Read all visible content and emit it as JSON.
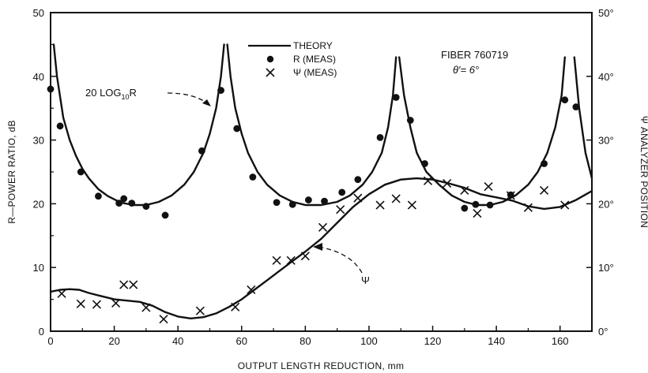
{
  "chart_data": {
    "type": "line",
    "title": "",
    "xlabel": "OUTPUT LENGTH REDUCTION, mm",
    "ylabel": "R—POWER RATIO, dB",
    "y2label": "Ψ ANALYZER POSITION",
    "xlim": [
      0,
      170
    ],
    "ylim": [
      0,
      50
    ],
    "y2lim": [
      0,
      50
    ],
    "xticks": [
      0,
      20,
      40,
      60,
      80,
      100,
      120,
      140,
      160
    ],
    "yticks": [
      0,
      10,
      20,
      30,
      40,
      50
    ],
    "y2ticks": [
      "0°",
      "10°",
      "20°",
      "30°",
      "40°",
      "50°"
    ],
    "grid": false,
    "legend": {
      "position": "top-center",
      "entries": [
        "THEORY",
        "R (MEAS)",
        "Ψ (MEAS)"
      ]
    },
    "annotations": {
      "fiber": "FIBER 760719",
      "angle": "θ′= 6°",
      "r_curve": "20 LOG",
      "r_curve_sub": "10",
      "r_curve_end": "R",
      "psi_curve": "Ψ"
    },
    "series": [
      {
        "name": "THEORY",
        "kind": "theory-R",
        "x": [
          0.5,
          1,
          2,
          4,
          6,
          8,
          10,
          12,
          15,
          18,
          22,
          26,
          30,
          34,
          38,
          42,
          45,
          48,
          50,
          52,
          53.5,
          54.5,
          55.5,
          56.5,
          58,
          60,
          62,
          65,
          68,
          72,
          76,
          80,
          85,
          90,
          94,
          98,
          101,
          104,
          106,
          107.5,
          108.5,
          109.5,
          111,
          113,
          115,
          118,
          122,
          126,
          130,
          134,
          138,
          142,
          146,
          150,
          153,
          156,
          158.5,
          160.5,
          161.5,
          162.5,
          163.5,
          164.5,
          166,
          168,
          170
        ],
        "y": [
          50,
          45,
          40,
          33.5,
          30,
          27.5,
          25.5,
          24,
          22.3,
          21.2,
          20.2,
          19.8,
          19.8,
          20.3,
          21.3,
          23,
          25,
          28,
          31,
          35,
          40,
          45,
          45,
          40,
          35,
          31,
          28,
          25,
          23,
          21.3,
          20.3,
          19.8,
          19.8,
          20.3,
          21.3,
          23,
          25,
          28,
          32,
          37,
          43,
          43,
          37,
          32,
          28,
          25,
          23,
          21.3,
          20.3,
          19.8,
          19.8,
          20.3,
          21.3,
          23,
          25,
          28,
          32,
          37,
          43,
          50,
          50,
          43,
          35,
          28,
          24
        ]
      },
      {
        "name": "THEORY",
        "kind": "theory-psi",
        "x": [
          0,
          3,
          6,
          9,
          12,
          16,
          20,
          24,
          28,
          32,
          36,
          40,
          44,
          48,
          52,
          56,
          60,
          64,
          68,
          72,
          76,
          80,
          85,
          90,
          95,
          100,
          105,
          110,
          115,
          120,
          125,
          130,
          135,
          140,
          145,
          150,
          155,
          160,
          165,
          170
        ],
        "y": [
          6.2,
          6.5,
          6.6,
          6.5,
          6.0,
          5.5,
          5.0,
          4.8,
          4.6,
          4.0,
          3.0,
          2.3,
          2.0,
          2.2,
          2.8,
          3.8,
          5.0,
          6.5,
          8.0,
          9.5,
          11.0,
          12.5,
          14.5,
          17.0,
          19.5,
          21.5,
          23.0,
          23.8,
          24.0,
          23.8,
          23.2,
          22.5,
          21.5,
          21.0,
          20.5,
          19.6,
          19.2,
          19.5,
          20.6,
          22.0
        ]
      },
      {
        "name": "R (MEAS)",
        "kind": "dots",
        "x": [
          0,
          3,
          9.5,
          15,
          21.5,
          23,
          25.5,
          30,
          36,
          47.5,
          53.5,
          58.5,
          63.5,
          71,
          76,
          81,
          86,
          91.5,
          96.5,
          103.5,
          108.5,
          113,
          117.5,
          130,
          133.5,
          138,
          144.5,
          155,
          161.5,
          165
        ],
        "y": [
          38,
          32.2,
          25,
          21.2,
          20.1,
          20.8,
          20.1,
          19.6,
          18.2,
          28.3,
          37.8,
          31.8,
          24.2,
          20.2,
          19.9,
          20.6,
          20.4,
          21.8,
          23.8,
          30.4,
          36.7,
          33.1,
          26.3,
          19.3,
          19.9,
          19.8,
          21.4,
          26.3,
          36.3,
          35.2
        ]
      },
      {
        "name": "Ψ (MEAS)",
        "kind": "crosses",
        "x": [
          3.5,
          9.5,
          14.5,
          20.5,
          23,
          26,
          30,
          35.5,
          47,
          58,
          63,
          71,
          75.5,
          80,
          85.5,
          91,
          96.5,
          103.5,
          108.5,
          113.5,
          118.5,
          124.5,
          130,
          134,
          137.5,
          144.5,
          150,
          155,
          161.5
        ],
        "y": [
          5.9,
          4.3,
          4.2,
          4.4,
          7.3,
          7.3,
          3.7,
          1.9,
          3.2,
          3.8,
          6.5,
          11.1,
          11.1,
          11.8,
          16.3,
          19.1,
          20.9,
          19.8,
          20.8,
          19.8,
          23.6,
          23.2,
          22.1,
          18.5,
          22.7,
          21.3,
          19.4,
          22.1,
          19.8
        ]
      }
    ]
  }
}
